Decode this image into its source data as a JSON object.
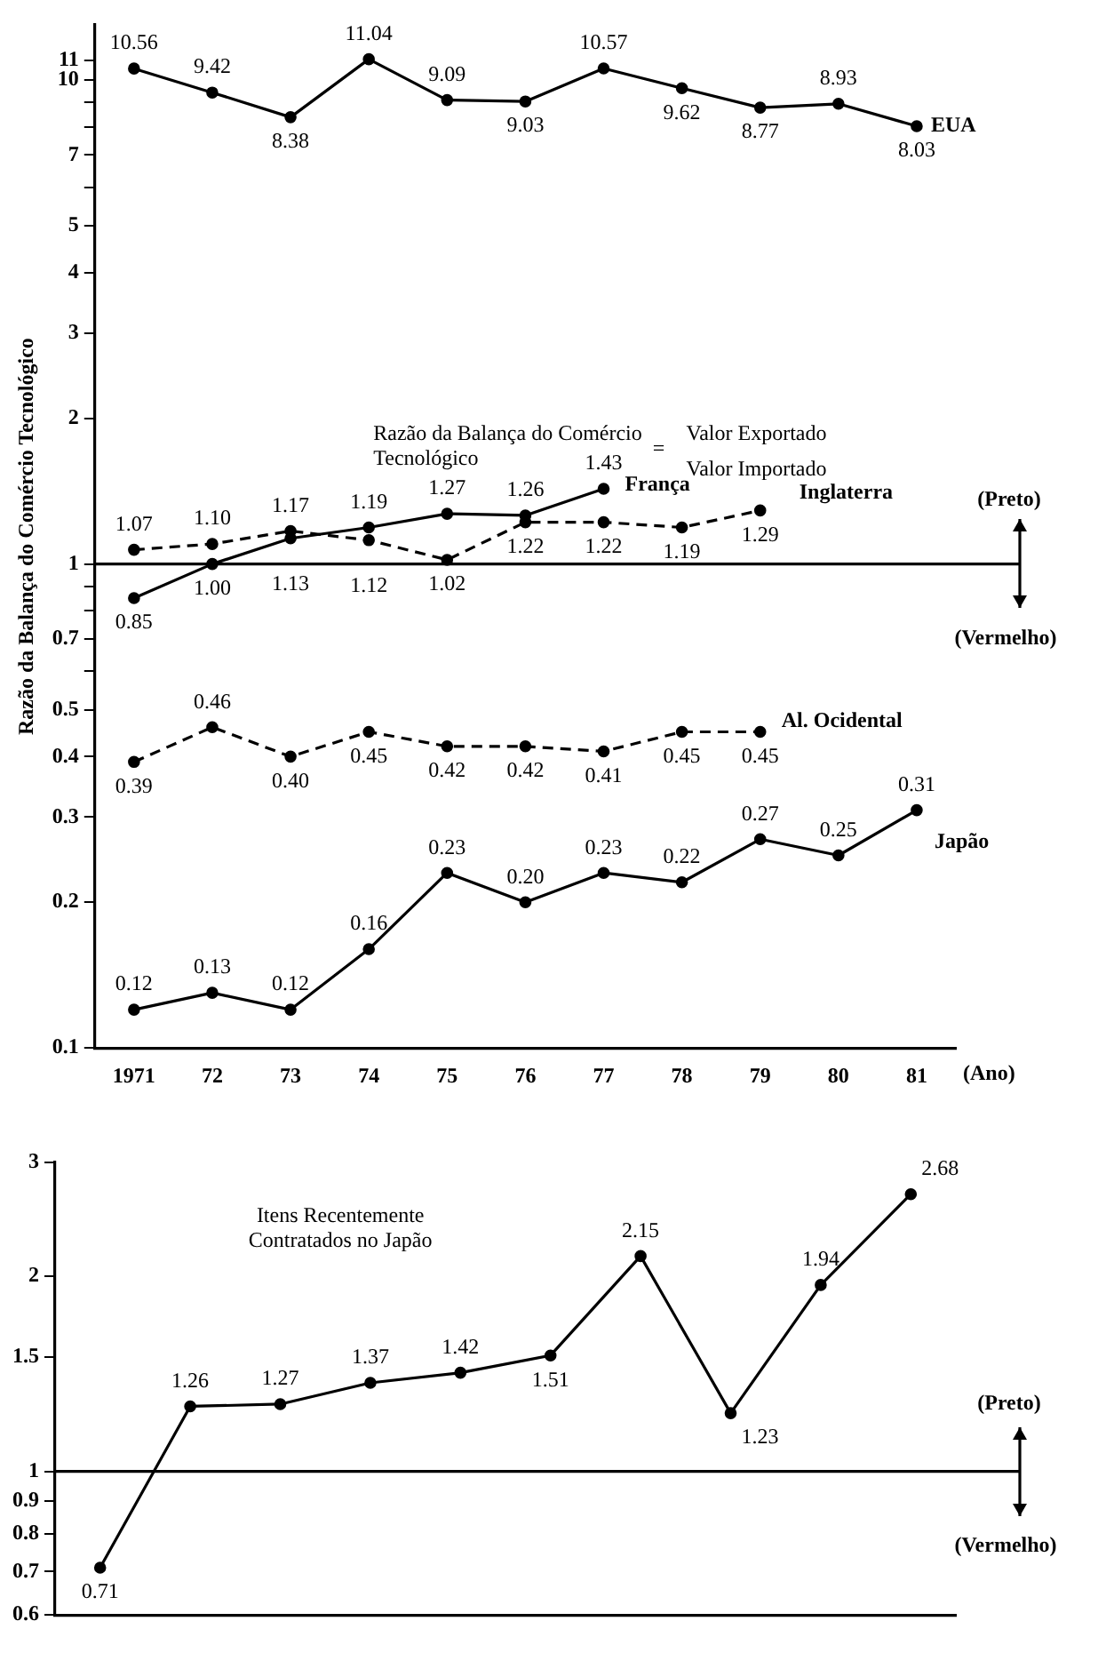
{
  "chart_data": [
    {
      "type": "line",
      "ylabel": "Razão da Balança do Comércio Tecnológico",
      "xlabel": "(Ano)",
      "categories": [
        "1971",
        "72",
        "73",
        "74",
        "75",
        "76",
        "77",
        "78",
        "79",
        "80",
        "81"
      ],
      "series": [
        {
          "name": "EUA",
          "color": "#000000",
          "line_style": "solid",
          "values": [
            10.56,
            9.42,
            8.38,
            11.04,
            9.09,
            9.03,
            10.57,
            9.62,
            8.77,
            8.93,
            8.03
          ],
          "value_labels": [
            "10.56",
            "9.42",
            "8.38",
            "11.04",
            "9.09",
            "9.03",
            "10.57",
            "9.62",
            "8.77",
            "8.93",
            "8.03"
          ]
        },
        {
          "name": "França",
          "color": "#000000",
          "line_style": "solid",
          "values": [
            0.85,
            1.0,
            1.13,
            1.19,
            1.27,
            1.26,
            1.43,
            null,
            null,
            null,
            null
          ],
          "value_labels": [
            "0.85",
            "1.00",
            "1.13",
            "1.19",
            "1.27",
            "1.26",
            "1.43",
            null,
            null,
            null,
            null
          ]
        },
        {
          "name": "Inglaterra",
          "color": "#000000",
          "line_style": "dashed",
          "values": [
            1.07,
            1.1,
            1.17,
            1.12,
            1.02,
            1.22,
            1.22,
            1.19,
            1.29,
            null,
            null
          ],
          "value_labels": [
            "1.07",
            "1.10",
            "1.17",
            "1.12",
            "1.02",
            "1.22",
            "1.22",
            "1.19",
            "1.29",
            null,
            null
          ]
        },
        {
          "name": "Al. Ocidental",
          "color": "#000000",
          "line_style": "dashed",
          "values": [
            0.39,
            0.46,
            0.4,
            0.45,
            0.42,
            0.42,
            0.41,
            0.45,
            0.45,
            null,
            null
          ],
          "value_labels": [
            "0.39",
            "0.46",
            "0.40",
            "0.45",
            "0.42",
            "0.42",
            "0.41",
            "0.45",
            "0.45",
            null,
            null
          ]
        },
        {
          "name": "Japão",
          "color": "#000000",
          "line_style": "solid",
          "values": [
            0.12,
            0.13,
            0.12,
            0.16,
            0.23,
            0.2,
            0.23,
            0.22,
            0.27,
            0.25,
            0.31
          ],
          "value_labels": [
            "0.12",
            "0.13",
            "0.12",
            "0.16",
            "0.23",
            "0.20",
            "0.23",
            "0.22",
            "0.27",
            "0.25",
            "0.31"
          ]
        }
      ],
      "log": "y",
      "ylim": [
        0.1,
        13
      ],
      "yticks": [
        0.1,
        0.2,
        0.3,
        0.4,
        0.5,
        {
          "value": 0.6,
          "label": null
        },
        0.7,
        {
          "value": 0.8,
          "label": null
        },
        {
          "value": 0.9,
          "label": null
        },
        1,
        2,
        3,
        4,
        5,
        {
          "value": 6,
          "label": null
        },
        7,
        {
          "value": 8,
          "label": null
        },
        {
          "value": 9,
          "label": null
        },
        10,
        11
      ],
      "grid": false,
      "marker": "circle",
      "ref_lines": [
        {
          "axis": "y",
          "value": 1
        }
      ],
      "annotations": [
        "Razão da Balança do Comércio Tecnológico",
        "=",
        "Valor Exportado",
        "Valor Importado",
        "(Preto)",
        "(Vermelho)"
      ]
    },
    {
      "type": "line",
      "categories": [
        null,
        null,
        null,
        null,
        null,
        null,
        null,
        null,
        null,
        null
      ],
      "series": [
        {
          "color": "#000000",
          "line_style": "solid",
          "values": [
            0.71,
            1.26,
            1.27,
            1.37,
            1.42,
            1.51,
            2.15,
            1.23,
            1.94,
            2.68
          ]
        }
      ],
      "log": "y",
      "ylim": [
        0.6,
        3
      ],
      "yticks": [
        0.6,
        0.7,
        0.8,
        0.9,
        1,
        1.5,
        2,
        3
      ],
      "grid": false,
      "marker": "circle",
      "data_labels": true,
      "tick_labels": "y",
      "ref_lines": [
        {
          "axis": "y",
          "value": 1
        }
      ],
      "annotations": [
        "Itens Recentemente Contratados no Japão",
        "(Preto)",
        "(Vermelho)"
      ]
    }
  ]
}
